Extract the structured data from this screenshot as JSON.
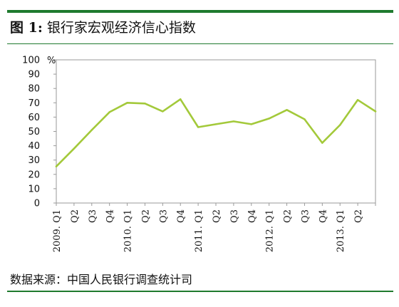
{
  "figure": {
    "label": "图 1:",
    "title": "银行家宏观经济信心指数",
    "source": "数据来源：中国人民银行调查统计司"
  },
  "chart_data": {
    "type": "line",
    "title": "银行家宏观经济信心指数",
    "xlabel": "",
    "ylabel": "%",
    "ylim": [
      0,
      100
    ],
    "yticks": [
      0,
      10,
      20,
      30,
      40,
      50,
      60,
      70,
      80,
      90,
      100
    ],
    "grid": false,
    "legend": "none",
    "line_color": "#a3c93a",
    "categories": [
      "2009. Q1",
      "Q2",
      "Q3",
      "Q4",
      "2010. Q1",
      "Q2",
      "Q3",
      "Q4",
      "2011. Q1",
      "Q2",
      "Q3",
      "Q4",
      "2012. Q1",
      "Q2",
      "Q3",
      "Q4",
      "2013. Q1",
      "Q2",
      ""
    ],
    "series": [
      {
        "values": [
          25.5,
          38,
          51,
          63.5,
          70,
          69.5,
          64,
          72.5,
          53,
          55,
          57,
          55,
          59,
          65,
          58.5,
          42,
          54.5,
          72,
          64
        ]
      }
    ]
  }
}
